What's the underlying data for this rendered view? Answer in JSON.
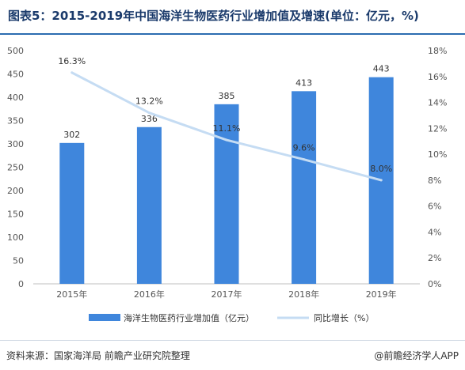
{
  "header": {
    "title": "图表5：2015-2019年中国海洋生物医药行业增加值及增速(单位：亿元，%)"
  },
  "footer": {
    "source": "资料来源：国家海洋局 前瞻产业研究院整理",
    "brand": "@前瞻经济学人APP"
  },
  "chart_data": {
    "type": "bar",
    "categories": [
      "2015年",
      "2016年",
      "2017年",
      "2018年",
      "2019年"
    ],
    "series": [
      {
        "name": "海洋生物医药行业增加值（亿元）",
        "type": "bar",
        "axis": "left",
        "values": [
          302,
          336,
          385,
          413,
          443
        ],
        "labels": [
          "302",
          "336",
          "385",
          "413",
          "443"
        ]
      },
      {
        "name": "同比增长（%）",
        "type": "line",
        "axis": "right",
        "values": [
          16.3,
          13.2,
          11.1,
          9.6,
          8.0
        ],
        "labels": [
          "16.3%",
          "13.2%",
          "11.1%",
          "9.6%",
          "8.0%"
        ]
      }
    ],
    "y_left": {
      "min": 0,
      "max": 500,
      "ticks": [
        "0",
        "50",
        "100",
        "150",
        "200",
        "250",
        "300",
        "350",
        "400",
        "450",
        "500"
      ]
    },
    "y_right": {
      "min": 0,
      "max": 18,
      "ticks": [
        "0%",
        "2%",
        "4%",
        "6%",
        "8%",
        "10%",
        "12%",
        "14%",
        "16%",
        "18%"
      ]
    },
    "legend_position": "bottom",
    "grid": false,
    "colors": {
      "bar": "#3f86dc",
      "line": "#c5dcf3",
      "title": "#1a3a6b",
      "rule": "#2b6cb0"
    }
  }
}
